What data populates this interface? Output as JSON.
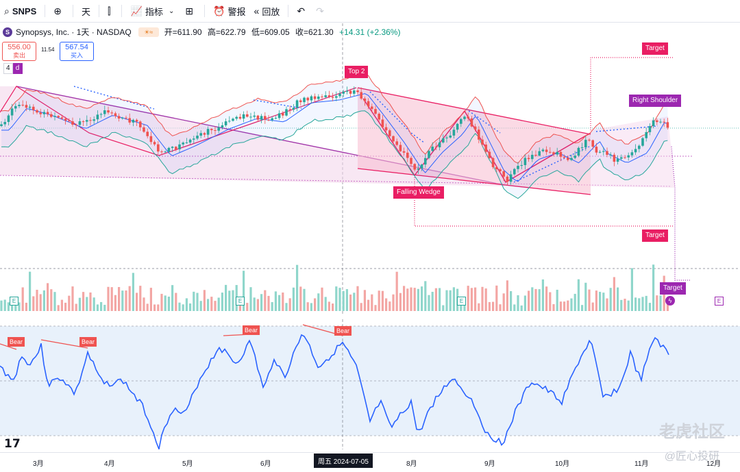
{
  "toolbar": {
    "symbol": "SNPS",
    "interval": "天",
    "indicators": "指标",
    "alert": "警报",
    "replay": "回放"
  },
  "legend": {
    "title": "Synopsys, Inc. · 1天 · NASDAQ",
    "open": "开=611.90",
    "high": "高=622.79",
    "low": "低=609.05",
    "close": "收=621.30",
    "change": "+14.31 (+2.36%)"
  },
  "trade": {
    "sell_price": "556.00",
    "sell_label": "卖出",
    "spread": "11.54",
    "buy_price": "567.54",
    "buy_label": "买入"
  },
  "signals": {
    "count": "4"
  },
  "patterns": {
    "top2": "Top 2",
    "falling_wedge": "Falling Wedge",
    "right_shoulder": "Right Shoulder",
    "target": "Target",
    "bear": "Bear",
    "earnings": "E"
  },
  "time_axis": {
    "months": [
      "3月",
      "4月",
      "5月",
      "6月",
      "7月",
      "8月",
      "9月",
      "10月",
      "11月",
      "12月"
    ],
    "current_date": "周五 2024-07-05"
  },
  "watermark": {
    "main": "老虎社区",
    "sub": "@匠心投研"
  },
  "colors": {
    "up": "#26a69a",
    "down": "#ef5350",
    "pattern": "#e91e63",
    "purple": "#9c27b0",
    "rsi_line": "#2962ff"
  }
}
